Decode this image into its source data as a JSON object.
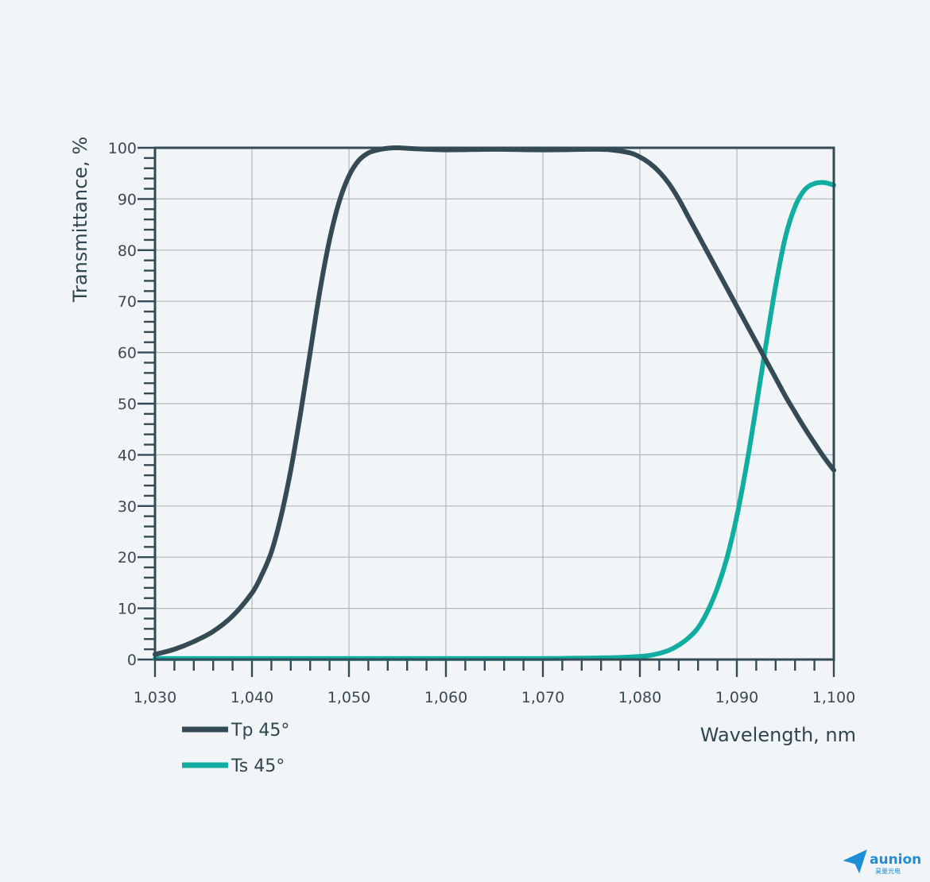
{
  "chart_data": {
    "type": "line",
    "xlabel": "Wavelength, nm",
    "ylabel": "Transmittance, %",
    "xlim": [
      1030,
      1100
    ],
    "ylim": [
      0,
      100
    ],
    "x_ticks": [
      1030,
      1040,
      1050,
      1060,
      1070,
      1080,
      1090,
      1100
    ],
    "x_tick_labels": [
      "1,030",
      "1,040",
      "1,050",
      "1,060",
      "1,070",
      "1,080",
      "1,090",
      "1,100"
    ],
    "y_ticks": [
      0,
      10,
      20,
      30,
      40,
      50,
      60,
      70,
      80,
      90,
      100
    ],
    "y_tick_labels": [
      "0",
      "10",
      "20",
      "30",
      "40",
      "50",
      "60",
      "70",
      "80",
      "90",
      "100"
    ],
    "grid": true,
    "legend_position": "bottom-left",
    "series": [
      {
        "name": "Tp 45°",
        "color": "#344b55",
        "x": [
          1030,
          1032,
          1034,
          1036,
          1038,
          1040,
          1041,
          1042,
          1043,
          1044,
          1045,
          1046,
          1047,
          1048,
          1049,
          1050,
          1051,
          1052,
          1053,
          1054,
          1055,
          1057,
          1060,
          1065,
          1070,
          1075,
          1077,
          1079,
          1080,
          1081,
          1082,
          1083,
          1084,
          1085,
          1086,
          1087,
          1088,
          1089,
          1090,
          1091,
          1092,
          1093,
          1094,
          1095,
          1096,
          1097,
          1098,
          1099,
          1100
        ],
        "y": [
          1,
          2,
          3.5,
          5.5,
          8.5,
          13,
          16.5,
          21,
          28,
          37,
          48,
          60,
          72,
          82,
          89.5,
          94.5,
          97.5,
          99,
          99.6,
          99.9,
          100,
          99.8,
          99.6,
          99.7,
          99.6,
          99.7,
          99.6,
          99,
          98.2,
          97,
          95.3,
          93,
          90,
          86.5,
          83,
          79.5,
          76,
          72.5,
          69,
          65.5,
          62,
          58.5,
          55,
          51.5,
          48.3,
          45.2,
          42.3,
          39.5,
          37
        ]
      },
      {
        "name": "Ts 45°",
        "color": "#10ada0",
        "x": [
          1030,
          1040,
          1050,
          1060,
          1070,
          1075,
          1078,
          1080,
          1081,
          1082,
          1083,
          1084,
          1085,
          1086,
          1087,
          1088,
          1089,
          1090,
          1091,
          1092,
          1093,
          1094,
          1095,
          1096,
          1097,
          1098,
          1099,
          1100
        ],
        "y": [
          0.2,
          0.2,
          0.2,
          0.2,
          0.2,
          0.3,
          0.4,
          0.6,
          0.8,
          1.2,
          1.8,
          2.8,
          4.2,
          6.2,
          9.5,
          14,
          20,
          28,
          38,
          49.5,
          61.5,
          73,
          82.5,
          88.5,
          91.8,
          93,
          93.2,
          92.7
        ]
      }
    ]
  },
  "logo": {
    "name": "aunion",
    "subtitle": "昊量光电"
  }
}
